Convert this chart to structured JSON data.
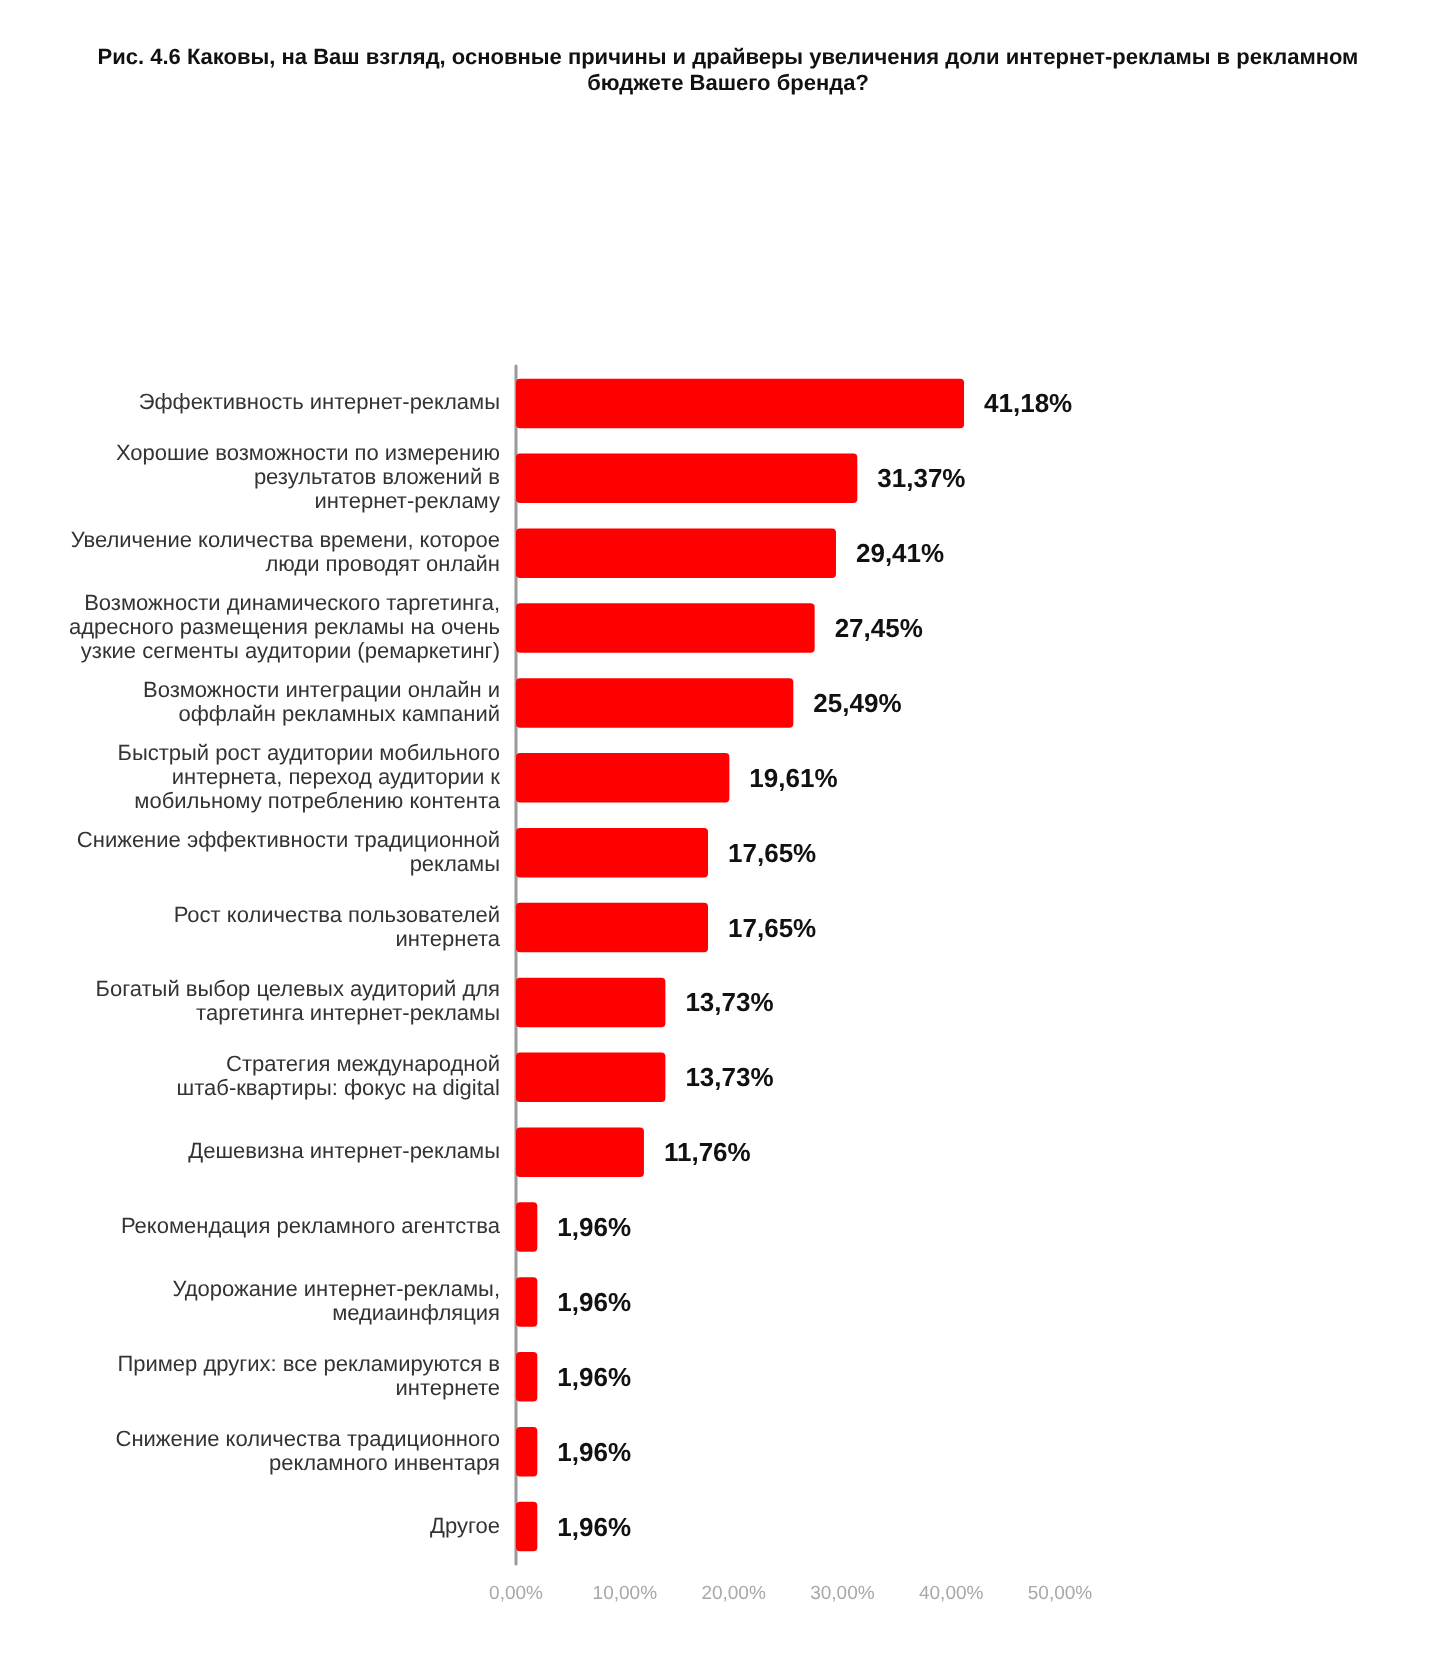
{
  "chart_data": {
    "type": "bar",
    "orientation": "horizontal",
    "title": "Рис. 4.6 Каковы, на Ваш взгляд, основные причины и драйверы увеличения доли интернет-рекламы в рекламном бюджете Вашего бренда?",
    "categories": [
      "Эффективность интернет-рекламы",
      "Хорошие возможности по измерению результатов вложений в интернет-рекламу",
      "Увеличение количества времени, которое люди проводят онлайн",
      "Возможности динамического таргетинга, адресного размещения рекламы на очень узкие сегменты аудитории (ремаркетинг)",
      "Возможности интеграции онлайн и оффлайн рекламных кампаний",
      "Быстрый рост аудитории мобильного интернета, переход аудитории к мобильному потреблению контента",
      "Снижение эффективности традиционной рекламы",
      "Рост количества пользователей интернета",
      "Богатый выбор целевых аудиторий для таргетинга интернет-рекламы",
      "Стратегия международной штаб-квартиры: фокус на digital",
      "Дешевизна интернет-рекламы",
      "Рекомендация рекламного агентства",
      "Удорожание интернет-рекламы, медиаинфляция",
      "Пример других: все рекламируются в интернете",
      "Снижение количества традиционного рекламного инвентаря",
      "Другое"
    ],
    "values": [
      41.18,
      31.37,
      29.41,
      27.45,
      25.49,
      19.61,
      17.65,
      17.65,
      13.73,
      13.73,
      11.76,
      1.96,
      1.96,
      1.96,
      1.96,
      1.96
    ],
    "value_labels": [
      "41,18%",
      "31,37%",
      "29,41%",
      "27,45%",
      "25,49%",
      "19,61%",
      "17,65%",
      "17,65%",
      "13,73%",
      "13,73%",
      "11,76%",
      "1,96%",
      "1,96%",
      "1,96%",
      "1,96%",
      "1,96%"
    ],
    "color": "#ff0000",
    "xlim": [
      0,
      50
    ],
    "xticks": [
      {
        "value": 0,
        "label": "0,00%"
      },
      {
        "value": 10,
        "label": "10,00%"
      },
      {
        "value": 20,
        "label": "20,00%"
      },
      {
        "value": 30,
        "label": "30,00%"
      },
      {
        "value": 40,
        "label": "40,00%"
      },
      {
        "value": 50,
        "label": "50,00%"
      }
    ]
  }
}
